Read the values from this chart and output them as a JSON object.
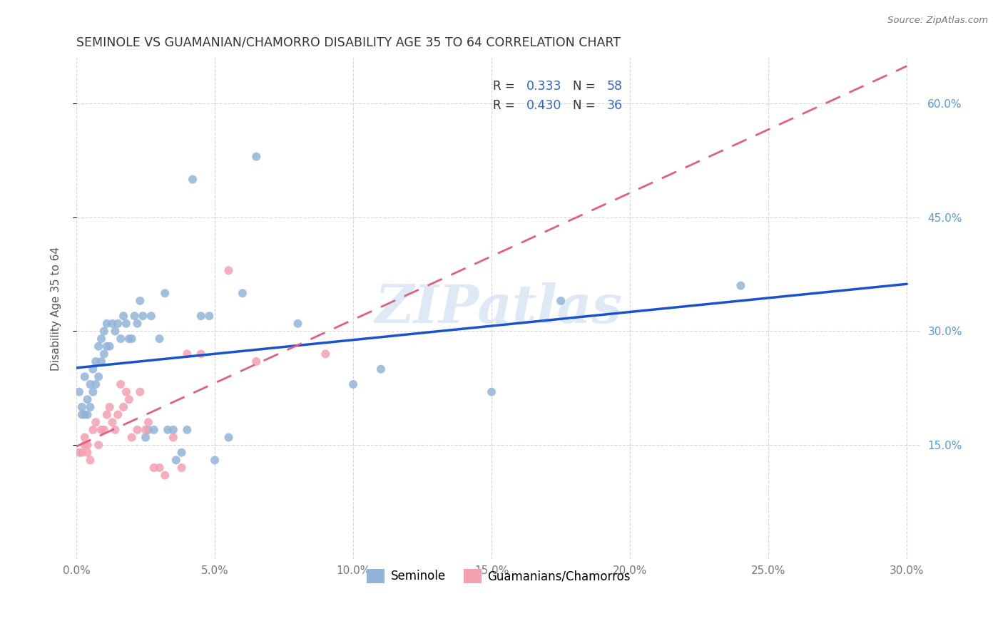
{
  "title": "SEMINOLE VS GUAMANIAN/CHAMORRO DISABILITY AGE 35 TO 64 CORRELATION CHART",
  "source": "Source: ZipAtlas.com",
  "ylabel": "Disability Age 35 to 64",
  "xlim": [
    0.0,
    0.305
  ],
  "ylim": [
    0.0,
    0.66
  ],
  "xticks": [
    0.0,
    0.05,
    0.1,
    0.15,
    0.2,
    0.25,
    0.3
  ],
  "xtick_labels": [
    "0.0%",
    "5.0%",
    "10.0%",
    "15.0%",
    "20.0%",
    "25.0%",
    "30.0%"
  ],
  "yticks": [
    0.15,
    0.3,
    0.45,
    0.6
  ],
  "ytick_labels": [
    "15.0%",
    "30.0%",
    "45.0%",
    "60.0%"
  ],
  "seminole_color": "#92B4D9",
  "guamanian_color": "#F4A0B0",
  "trend_seminole_color": "#1a52cc",
  "trend_guamanian_color": "#e06080",
  "legend_R1": "0.333",
  "legend_N1": "58",
  "legend_R2": "0.430",
  "legend_N2": "36",
  "legend_color": "#3366CC",
  "watermark": "ZIPatlas",
  "seminole_x": [
    0.001,
    0.002,
    0.002,
    0.003,
    0.003,
    0.004,
    0.004,
    0.005,
    0.005,
    0.006,
    0.006,
    0.007,
    0.007,
    0.008,
    0.008,
    0.009,
    0.009,
    0.01,
    0.01,
    0.011,
    0.011,
    0.012,
    0.013,
    0.014,
    0.015,
    0.016,
    0.017,
    0.018,
    0.019,
    0.02,
    0.021,
    0.022,
    0.023,
    0.024,
    0.025,
    0.026,
    0.027,
    0.028,
    0.03,
    0.032,
    0.033,
    0.035,
    0.036,
    0.038,
    0.04,
    0.042,
    0.045,
    0.048,
    0.05,
    0.055,
    0.06,
    0.065,
    0.08,
    0.1,
    0.11,
    0.15,
    0.175,
    0.24
  ],
  "seminole_y": [
    0.22,
    0.2,
    0.19,
    0.19,
    0.24,
    0.19,
    0.21,
    0.23,
    0.2,
    0.25,
    0.22,
    0.23,
    0.26,
    0.28,
    0.24,
    0.26,
    0.29,
    0.27,
    0.3,
    0.28,
    0.31,
    0.28,
    0.31,
    0.3,
    0.31,
    0.29,
    0.32,
    0.31,
    0.29,
    0.29,
    0.32,
    0.31,
    0.34,
    0.32,
    0.16,
    0.17,
    0.32,
    0.17,
    0.29,
    0.35,
    0.17,
    0.17,
    0.13,
    0.14,
    0.17,
    0.5,
    0.32,
    0.32,
    0.13,
    0.16,
    0.35,
    0.53,
    0.31,
    0.23,
    0.25,
    0.22,
    0.34,
    0.36
  ],
  "guamanian_x": [
    0.001,
    0.002,
    0.003,
    0.003,
    0.004,
    0.004,
    0.005,
    0.006,
    0.007,
    0.008,
    0.009,
    0.01,
    0.011,
    0.012,
    0.013,
    0.014,
    0.015,
    0.016,
    0.017,
    0.018,
    0.019,
    0.02,
    0.022,
    0.023,
    0.025,
    0.026,
    0.028,
    0.03,
    0.032,
    0.035,
    0.038,
    0.04,
    0.045,
    0.055,
    0.065,
    0.09
  ],
  "guamanian_y": [
    0.14,
    0.14,
    0.15,
    0.16,
    0.14,
    0.15,
    0.13,
    0.17,
    0.18,
    0.15,
    0.17,
    0.17,
    0.19,
    0.2,
    0.18,
    0.17,
    0.19,
    0.23,
    0.2,
    0.22,
    0.21,
    0.16,
    0.17,
    0.22,
    0.17,
    0.18,
    0.12,
    0.12,
    0.11,
    0.16,
    0.12,
    0.27,
    0.27,
    0.38,
    0.26,
    0.27
  ]
}
